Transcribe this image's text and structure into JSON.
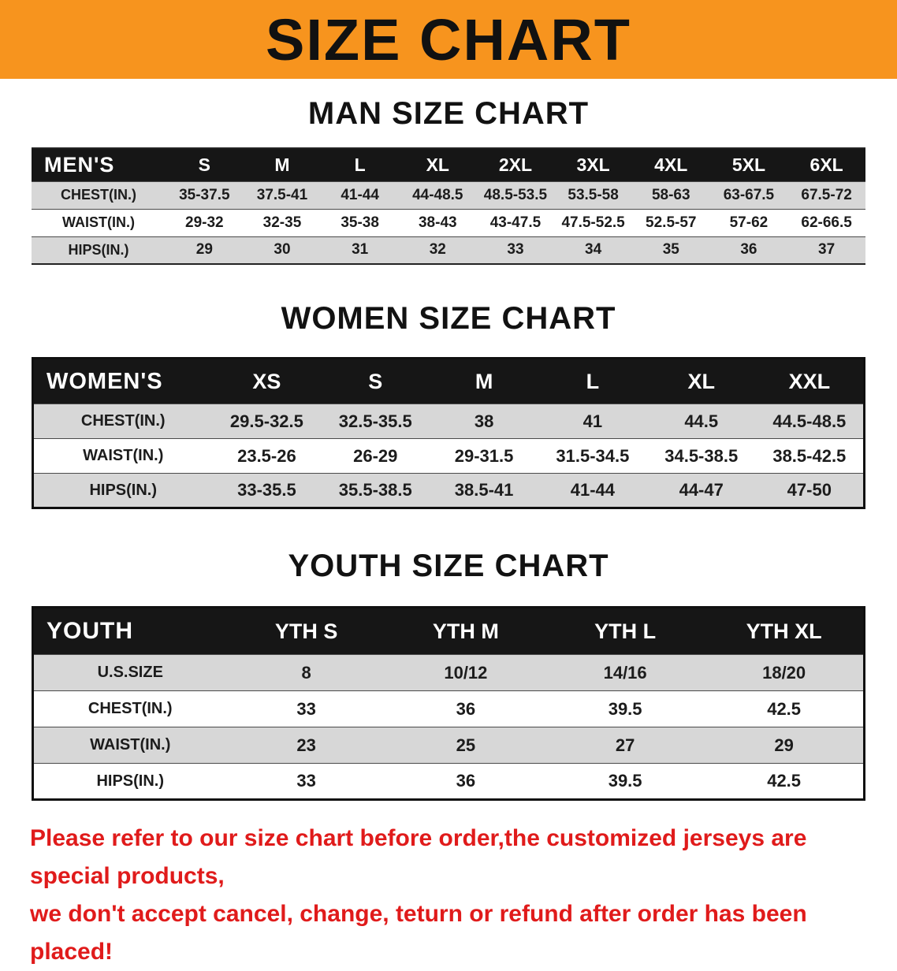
{
  "banner": {
    "title": "SIZE CHART",
    "bg_color": "#f7941e"
  },
  "sections": [
    {
      "id": "men",
      "heading": "MAN SIZE CHART",
      "table": {
        "header": [
          "MEN'S",
          "S",
          "M",
          "L",
          "XL",
          "2XL",
          "3XL",
          "4XL",
          "5XL",
          "6XL"
        ],
        "rows": [
          [
            "CHEST(IN.)",
            "35-37.5",
            "37.5-41",
            "41-44",
            "44-48.5",
            "48.5-53.5",
            "53.5-58",
            "58-63",
            "63-67.5",
            "67.5-72"
          ],
          [
            "WAIST(IN.)",
            "29-32",
            "32-35",
            "35-38",
            "38-43",
            "43-47.5",
            "47.5-52.5",
            "52.5-57",
            "57-62",
            "62-66.5"
          ],
          [
            "HIPS(IN.)",
            "29",
            "30",
            "31",
            "32",
            "33",
            "34",
            "35",
            "36",
            "37"
          ]
        ]
      }
    },
    {
      "id": "women",
      "heading": "WOMEN SIZE CHART",
      "table": {
        "header": [
          "WOMEN'S",
          "XS",
          "S",
          "M",
          "L",
          "XL",
          "XXL"
        ],
        "rows": [
          [
            "CHEST(IN.)",
            "29.5-32.5",
            "32.5-35.5",
            "38",
            "41",
            "44.5",
            "44.5-48.5"
          ],
          [
            "WAIST(IN.)",
            "23.5-26",
            "26-29",
            "29-31.5",
            "31.5-34.5",
            "34.5-38.5",
            "38.5-42.5"
          ],
          [
            "HIPS(IN.)",
            "33-35.5",
            "35.5-38.5",
            "38.5-41",
            "41-44",
            "44-47",
            "47-50"
          ]
        ]
      }
    },
    {
      "id": "youth",
      "heading": "YOUTH SIZE CHART",
      "table": {
        "header": [
          "YOUTH",
          "YTH S",
          "YTH M",
          "YTH L",
          "YTH XL"
        ],
        "rows": [
          [
            "U.S.SIZE",
            "8",
            "10/12",
            "14/16",
            "18/20"
          ],
          [
            "CHEST(IN.)",
            "33",
            "36",
            "39.5",
            "42.5"
          ],
          [
            "WAIST(IN.)",
            "23",
            "25",
            "27",
            "29"
          ],
          [
            "HIPS(IN.)",
            "33",
            "36",
            "39.5",
            "42.5"
          ]
        ]
      }
    }
  ],
  "footer": {
    "line1": "Please refer to our size chart before order,the customized jerseys are special products,",
    "line2": "we don't accept cancel, change, teturn or refund after order has been placed!",
    "text_color": "#e01b1b"
  }
}
